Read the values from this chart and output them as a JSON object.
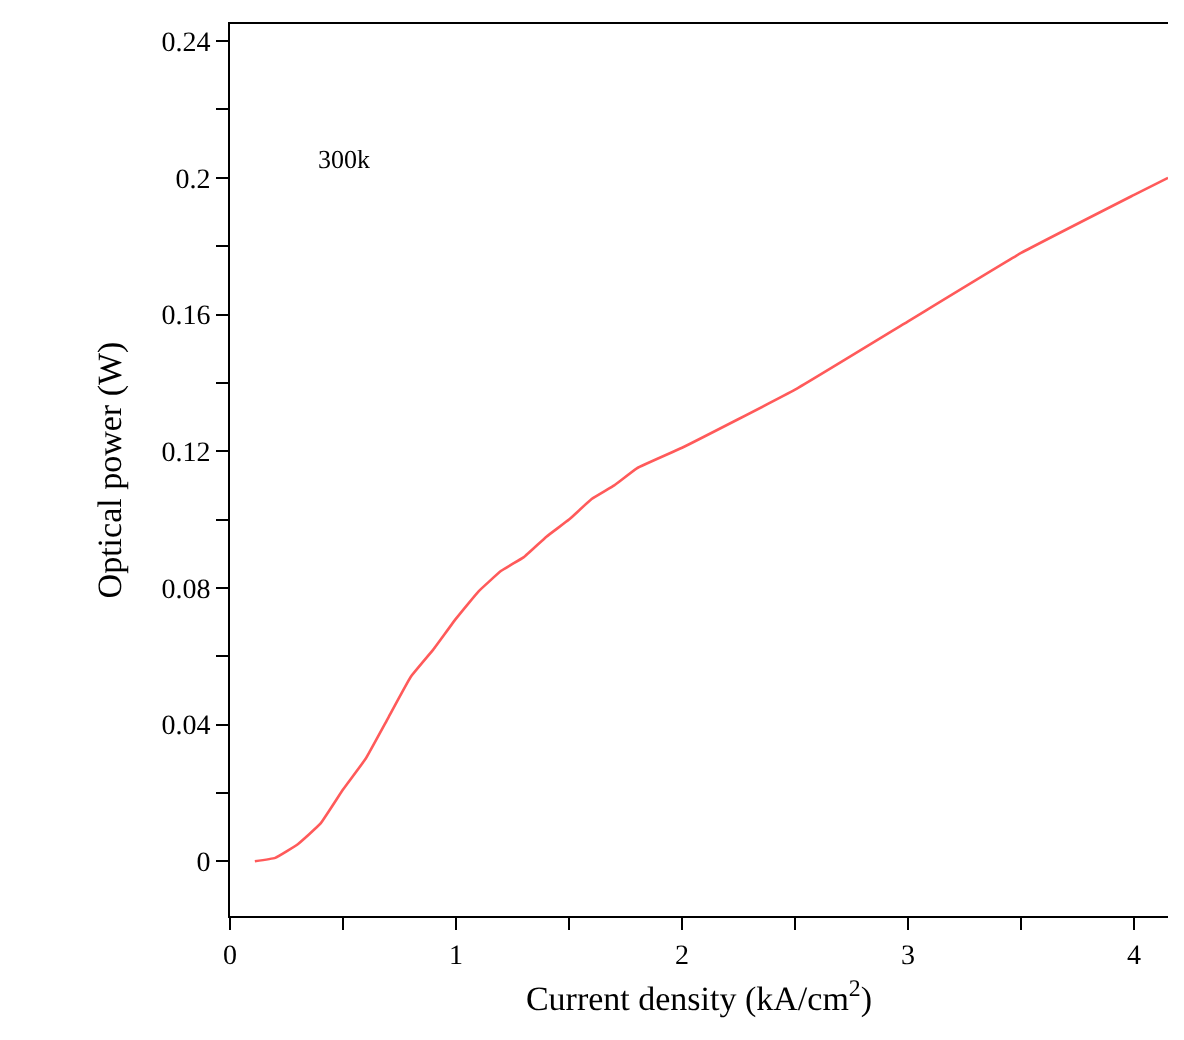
{
  "chart_data": {
    "type": "line",
    "xlabel": "Current density (kA/cm$^{2}$)",
    "ylabel": "Optical power (W)",
    "annotations": [
      "300k"
    ],
    "x": [
      0.11,
      0.2,
      0.3,
      0.4,
      0.5,
      0.6,
      0.7,
      0.8,
      0.9,
      1.0,
      1.1,
      1.2,
      1.3,
      1.4,
      1.5,
      1.6,
      1.7,
      1.8,
      2.0,
      2.5,
      3.0,
      3.5,
      4.0,
      4.15
    ],
    "series": [
      {
        "color": "#ff5a5a",
        "values": [
          0,
          0.001,
          0.005,
          0.011,
          0.021,
          0.03,
          0.042,
          0.054,
          0.062,
          0.071,
          0.079,
          0.085,
          0.089,
          0.095,
          0.1,
          0.106,
          0.11,
          0.115,
          0.121,
          0.138,
          0.158,
          0.178,
          0.195,
          0.2
        ]
      }
    ],
    "xlim": [
      0,
      4.15
    ],
    "ylim": [
      -0.016,
      0.245
    ],
    "xticks": [
      0,
      {
        "value": 0.5,
        "label": null
      },
      1,
      {
        "value": 1.5,
        "label": null
      },
      2,
      {
        "value": 2.5,
        "label": null
      },
      3,
      {
        "value": 3.5,
        "label": null
      },
      4
    ],
    "yticks": [
      0,
      {
        "value": 0.02,
        "label": null
      },
      0.04,
      {
        "value": 0.06,
        "label": null
      },
      0.08,
      {
        "value": 0.1,
        "label": null
      },
      0.12,
      {
        "value": 0.14,
        "label": null
      },
      0.16,
      {
        "value": 0.18,
        "label": null
      },
      0.2,
      {
        "value": 0.22,
        "label": null
      },
      0.24
    ],
    "legend": false,
    "marker": "none",
    "line_style": "solid"
  }
}
